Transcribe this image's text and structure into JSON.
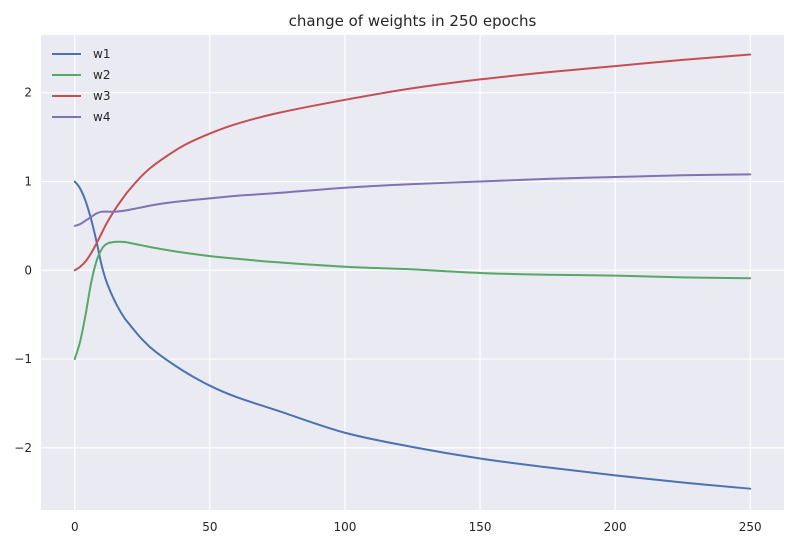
{
  "chart_data": {
    "type": "line",
    "title": "change of weights in 250 epochs",
    "xlabel": "",
    "ylabel": "",
    "xlim": [
      -12.5,
      262.5
    ],
    "ylim": [
      -2.7,
      2.65
    ],
    "xticks": [
      0,
      50,
      100,
      150,
      200,
      250
    ],
    "yticks": [
      -2,
      -1,
      0,
      1,
      2
    ],
    "xtick_labels": [
      "0",
      "50",
      "100",
      "150",
      "200",
      "250"
    ],
    "ytick_labels": [
      "−2",
      "−1",
      "0",
      "1",
      "2"
    ],
    "grid": true,
    "legend_position": "top-left",
    "background": "#eaeaf2",
    "x": [
      0,
      2,
      4,
      6,
      8,
      10,
      12,
      15,
      18,
      20,
      25,
      30,
      40,
      50,
      60,
      75,
      100,
      125,
      150,
      175,
      200,
      225,
      250
    ],
    "series": [
      {
        "name": "w1",
        "color": "#4c72b0",
        "values": [
          1.0,
          0.92,
          0.78,
          0.58,
          0.33,
          0.05,
          -0.15,
          -0.36,
          -0.52,
          -0.6,
          -0.78,
          -0.92,
          -1.13,
          -1.3,
          -1.43,
          -1.58,
          -1.83,
          -1.99,
          -2.12,
          -2.22,
          -2.31,
          -2.39,
          -2.46
        ]
      },
      {
        "name": "w2",
        "color": "#55a868",
        "values": [
          -1.0,
          -0.8,
          -0.5,
          -0.15,
          0.1,
          0.24,
          0.3,
          0.32,
          0.32,
          0.31,
          0.28,
          0.25,
          0.2,
          0.16,
          0.13,
          0.09,
          0.04,
          0.01,
          -0.03,
          -0.05,
          -0.06,
          -0.08,
          -0.09
        ]
      },
      {
        "name": "w3",
        "color": "#c44e52",
        "values": [
          0.0,
          0.04,
          0.1,
          0.19,
          0.3,
          0.42,
          0.54,
          0.69,
          0.82,
          0.9,
          1.07,
          1.2,
          1.4,
          1.54,
          1.65,
          1.77,
          1.92,
          2.05,
          2.15,
          2.23,
          2.3,
          2.37,
          2.43
        ]
      },
      {
        "name": "w4",
        "color": "#8172b2",
        "values": [
          0.5,
          0.52,
          0.56,
          0.6,
          0.64,
          0.66,
          0.66,
          0.66,
          0.67,
          0.68,
          0.71,
          0.74,
          0.78,
          0.81,
          0.84,
          0.87,
          0.93,
          0.97,
          1.0,
          1.03,
          1.05,
          1.07,
          1.08
        ]
      }
    ]
  }
}
